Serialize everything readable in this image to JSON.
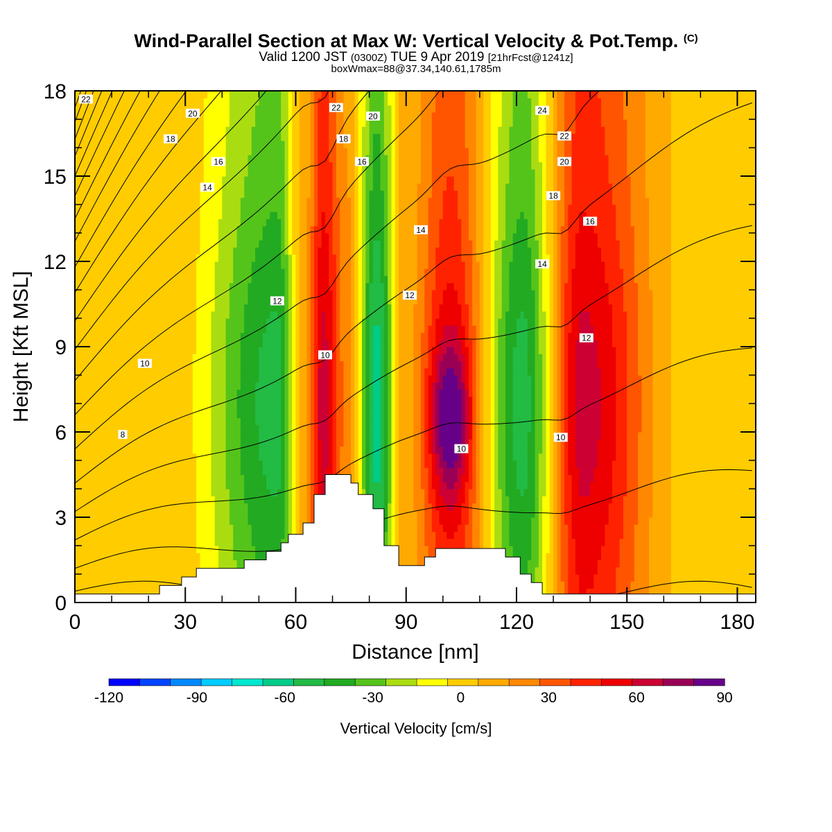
{
  "header": {
    "title_main": "Wind-Parallel Section at Max W: Vertical Velocity & Pot.Temp.",
    "title_mark": "(C)",
    "valid_prefix": "Valid 1200 JST",
    "valid_utc": "(0300Z)",
    "valid_date": "TUE 9 Apr 2019",
    "valid_run": "[21hrFcst@1241z]",
    "box_info": "boxWmax=88@37.34,140.61,1785m"
  },
  "chart_data": {
    "type": "heatmap",
    "xlabel": "Distance [nm]",
    "ylabel": "Height [Kft MSL]",
    "xlim": [
      0,
      185
    ],
    "ylim": [
      0,
      18
    ],
    "x_ticks": [
      0,
      30,
      60,
      90,
      120,
      150,
      180
    ],
    "y_ticks": [
      0,
      3,
      6,
      9,
      12,
      15,
      18
    ],
    "colorbar": {
      "label": "Vertical Velocity [cm/s]",
      "min": -120,
      "max": 90,
      "step": 10,
      "tick_labels": [
        -120,
        -90,
        -60,
        -30,
        0,
        30,
        60,
        90
      ],
      "colors": [
        "#0000ff",
        "#0044ff",
        "#0088ff",
        "#00ccff",
        "#00e8d0",
        "#00cc88",
        "#22bb44",
        "#22aa22",
        "#55c41a",
        "#aadd11",
        "#ffff00",
        "#ffcc00",
        "#ffaa00",
        "#ff8800",
        "#ff5500",
        "#ff2200",
        "#ee0000",
        "#cc0033",
        "#990055",
        "#660088"
      ]
    },
    "w_bands": [
      {
        "x0": 0,
        "x1": 50,
        "w": -2
      },
      {
        "x0": 50,
        "x1": 60,
        "w": -55
      },
      {
        "x0": 60,
        "x1": 64,
        "w": 5
      },
      {
        "x0": 64,
        "x1": 71,
        "w": 55
      },
      {
        "x0": 71,
        "x1": 77,
        "w": 15
      },
      {
        "x0": 77,
        "x1": 87,
        "w": -65
      },
      {
        "x0": 87,
        "x1": 92,
        "w": 5
      },
      {
        "x0": 92,
        "x1": 112,
        "w": 45,
        "core_w": 88,
        "core_x": 102,
        "core_y": 6.5
      },
      {
        "x0": 112,
        "x1": 131,
        "w": -55
      },
      {
        "x0": 131,
        "x1": 145,
        "w": 55
      },
      {
        "x0": 145,
        "x1": 185,
        "w": -2
      }
    ],
    "terrain": [
      [
        0,
        0.3
      ],
      [
        23,
        0.3
      ],
      [
        23,
        0.6
      ],
      [
        29,
        0.6
      ],
      [
        29,
        0.9
      ],
      [
        33,
        0.9
      ],
      [
        33,
        1.2
      ],
      [
        46,
        1.2
      ],
      [
        46,
        1.5
      ],
      [
        52,
        1.5
      ],
      [
        52,
        1.8
      ],
      [
        56,
        1.8
      ],
      [
        56,
        2.1
      ],
      [
        58,
        2.1
      ],
      [
        58,
        2.4
      ],
      [
        62,
        2.4
      ],
      [
        62,
        2.8
      ],
      [
        65,
        2.8
      ],
      [
        65,
        3.8
      ],
      [
        68,
        3.8
      ],
      [
        68,
        4.5
      ],
      [
        75,
        4.5
      ],
      [
        75,
        4.2
      ],
      [
        77,
        4.2
      ],
      [
        77,
        3.8
      ],
      [
        81,
        3.8
      ],
      [
        81,
        3.3
      ],
      [
        84,
        3.3
      ],
      [
        84,
        2.0
      ],
      [
        88,
        2.0
      ],
      [
        88,
        1.3
      ],
      [
        95,
        1.3
      ],
      [
        95,
        1.6
      ],
      [
        98,
        1.6
      ],
      [
        98,
        1.9
      ],
      [
        117,
        1.9
      ],
      [
        117,
        1.6
      ],
      [
        121,
        1.6
      ],
      [
        121,
        1.0
      ],
      [
        124,
        1.0
      ],
      [
        124,
        0.7
      ],
      [
        127,
        0.7
      ],
      [
        127,
        0.3
      ],
      [
        185,
        0.3
      ]
    ],
    "theta_contour_labels": [
      {
        "text": "22",
        "x": 3,
        "y": 17.7
      },
      {
        "text": "20",
        "x": 32,
        "y": 17.2
      },
      {
        "text": "18",
        "x": 26,
        "y": 16.3
      },
      {
        "text": "16",
        "x": 39,
        "y": 15.5
      },
      {
        "text": "14",
        "x": 36,
        "y": 14.6
      },
      {
        "text": "12",
        "x": 55,
        "y": 10.6
      },
      {
        "text": "10",
        "x": 19,
        "y": 8.4
      },
      {
        "text": "8",
        "x": 13,
        "y": 5.9
      },
      {
        "text": "22",
        "x": 71,
        "y": 17.4
      },
      {
        "text": "20",
        "x": 81,
        "y": 17.1
      },
      {
        "text": "18",
        "x": 73,
        "y": 16.3
      },
      {
        "text": "16",
        "x": 78,
        "y": 15.5
      },
      {
        "text": "10",
        "x": 68,
        "y": 8.7
      },
      {
        "text": "14",
        "x": 94,
        "y": 13.1
      },
      {
        "text": "12",
        "x": 91,
        "y": 10.8
      },
      {
        "text": "10",
        "x": 105,
        "y": 5.4
      },
      {
        "text": "24",
        "x": 127,
        "y": 17.3
      },
      {
        "text": "22",
        "x": 133,
        "y": 16.4
      },
      {
        "text": "20",
        "x": 133,
        "y": 15.5
      },
      {
        "text": "18",
        "x": 130,
        "y": 14.3
      },
      {
        "text": "16",
        "x": 140,
        "y": 13.4
      },
      {
        "text": "14",
        "x": 127,
        "y": 11.9
      },
      {
        "text": "12",
        "x": 139,
        "y": 9.3
      },
      {
        "text": "10",
        "x": 132,
        "y": 5.8
      }
    ]
  }
}
